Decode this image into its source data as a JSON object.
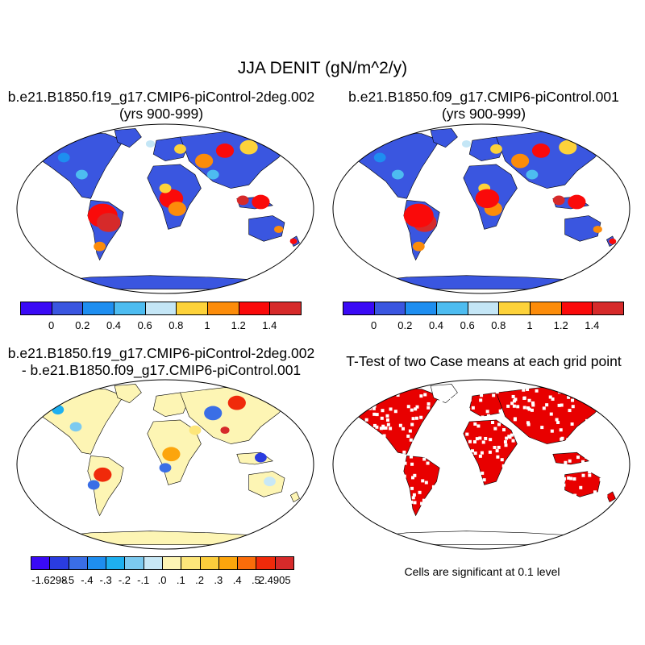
{
  "title": "JJA DENIT (gN/m^2/y)",
  "panels": [
    {
      "id": "case1",
      "title_lines": [
        "b.e21.B1850.f19_g17.CMIP6-piControl-2deg.002",
        "(yrs 900-999)"
      ]
    },
    {
      "id": "case2",
      "title_lines": [
        "b.e21.B1850.f09_g17.CMIP6-piControl.001",
        "(yrs 900-999)"
      ]
    },
    {
      "id": "diff",
      "title_lines": [
        "b.e21.B1850.f19_g17.CMIP6-piControl-2deg.002",
        "- b.e21.B1850.f09_g17.CMIP6-piControl.001"
      ]
    },
    {
      "id": "ttest",
      "title_lines": [
        "T-Test of two Case means at each grid point"
      ]
    }
  ],
  "significance_note": "Cells are significant at 0.1 level",
  "colorbar_main": {
    "colors": [
      "#3a0af5",
      "#3a56e0",
      "#1e8ef0",
      "#4dbcf0",
      "#c4e6f6",
      "#fdd23a",
      "#fc8c0a",
      "#fa0a0a",
      "#d62a2a"
    ],
    "labels": [
      "0",
      "0.2",
      "0.4",
      "0.6",
      "0.8",
      "1",
      "1.2",
      "1.4"
    ]
  },
  "colorbar_diff": {
    "colors": [
      "#3a0af5",
      "#2a3ce0",
      "#3a6ee6",
      "#1e8ef0",
      "#1eb0f0",
      "#7ccaf0",
      "#c8e8f6",
      "#fdf5b4",
      "#fde67a",
      "#fcce3c",
      "#fca50c",
      "#fa6c0a",
      "#f02a0a",
      "#d62a2a"
    ],
    "labels": [
      "-1.6298",
      "-.5",
      "-.4",
      "-.3",
      "-.2",
      "-.1",
      ".0",
      ".1",
      ".2",
      ".3",
      ".4",
      ".5",
      "2.4905"
    ]
  },
  "map_fill": {
    "case_land": "#3a56e0",
    "case_antarctica": "#3a56e0",
    "diff_land": "#fdf5b4",
    "diff_antarctica": "#fdf5b4",
    "ttest_land": "#e80000"
  }
}
